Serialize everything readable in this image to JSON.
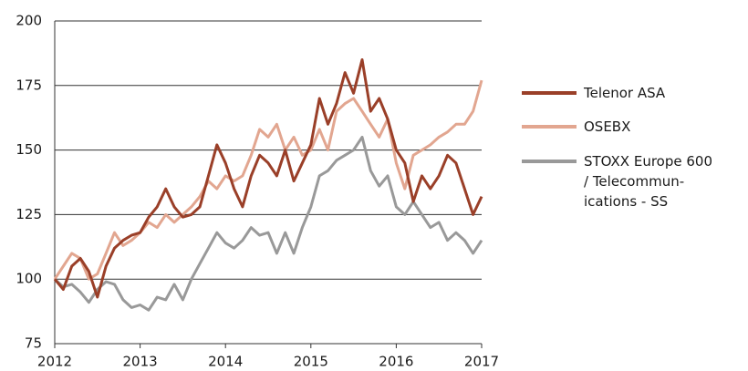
{
  "chart_data": {
    "type": "line",
    "x": [
      2012,
      2012.1,
      2012.2,
      2012.3,
      2012.4,
      2012.5,
      2012.6,
      2012.7,
      2012.8,
      2012.9,
      2013,
      2013.1,
      2013.2,
      2013.3,
      2013.4,
      2013.5,
      2013.6,
      2013.7,
      2013.8,
      2013.9,
      2014,
      2014.1,
      2014.2,
      2014.3,
      2014.4,
      2014.5,
      2014.6,
      2014.7,
      2014.8,
      2014.9,
      2015,
      2015.1,
      2015.2,
      2015.3,
      2015.4,
      2015.5,
      2015.6,
      2015.7,
      2015.8,
      2015.9,
      2016,
      2016.1,
      2016.2,
      2016.3,
      2016.4,
      2016.5,
      2016.6,
      2016.7,
      2016.8,
      2016.9,
      2017
    ],
    "series": [
      {
        "name": "Telenor ASA",
        "color": "#9a3f28",
        "values": [
          100,
          96,
          105,
          108,
          103,
          93,
          105,
          112,
          115,
          117,
          118,
          124,
          128,
          135,
          128,
          124,
          125,
          128,
          140,
          152,
          145,
          135,
          128,
          140,
          148,
          145,
          140,
          150,
          138,
          145,
          152,
          170,
          160,
          168,
          180,
          172,
          185,
          165,
          170,
          162,
          150,
          145,
          130,
          140,
          135,
          140,
          148,
          145,
          135,
          125,
          132
        ]
      },
      {
        "name": "OSEBX",
        "color": "#e2a690",
        "values": [
          100,
          105,
          110,
          108,
          100,
          102,
          110,
          118,
          113,
          115,
          118,
          122,
          120,
          125,
          122,
          125,
          128,
          132,
          138,
          135,
          140,
          138,
          140,
          148,
          158,
          155,
          160,
          150,
          155,
          148,
          150,
          158,
          150,
          165,
          168,
          170,
          165,
          160,
          155,
          162,
          145,
          135,
          148,
          150,
          152,
          155,
          157,
          160,
          160,
          165,
          177
        ]
      },
      {
        "name": "STOXX Europe 600 / Telecommun-ications - SS",
        "color": "#999999",
        "values": [
          100,
          97,
          98,
          95,
          91,
          96,
          99,
          98,
          92,
          89,
          90,
          88,
          93,
          92,
          98,
          92,
          100,
          106,
          112,
          118,
          114,
          112,
          115,
          120,
          117,
          118,
          110,
          118,
          110,
          120,
          128,
          140,
          142,
          146,
          148,
          150,
          155,
          142,
          136,
          140,
          128,
          125,
          130,
          125,
          120,
          122,
          115,
          118,
          115,
          110,
          115
        ]
      }
    ],
    "xlim": [
      2012,
      2017
    ],
    "xticks": [
      2012,
      2013,
      2014,
      2015,
      2016,
      2017
    ],
    "ylim": [
      75,
      200
    ],
    "yticks": [
      75,
      100,
      125,
      150,
      175,
      200
    ],
    "grid": true
  }
}
